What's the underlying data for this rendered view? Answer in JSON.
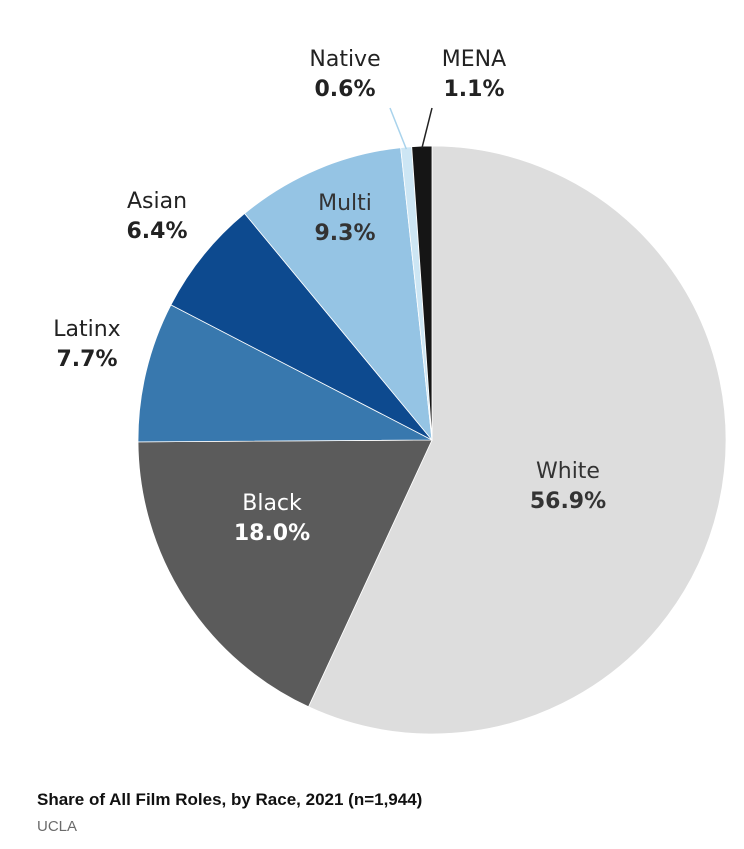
{
  "chart_data": {
    "type": "pie",
    "title": "Share of All Film Roles, by Race, 2021 (n=1,944)",
    "source": "UCLA",
    "slices": [
      {
        "label": "White",
        "value_text": "56.9%",
        "value": 56.9,
        "color": "#dddddd",
        "label_color": "#333333",
        "label_position": "inside"
      },
      {
        "label": "Black",
        "value_text": "18.0%",
        "value": 18.0,
        "color": "#5b5b5b",
        "label_color": "#ffffff",
        "label_position": "inside"
      },
      {
        "label": "Latinx",
        "value_text": "7.7%",
        "value": 7.7,
        "color": "#3878ae",
        "label_color": "#222222",
        "label_position": "outside"
      },
      {
        "label": "Asian",
        "value_text": "6.4%",
        "value": 6.4,
        "color": "#0d4a8f",
        "label_color": "#222222",
        "label_position": "outside"
      },
      {
        "label": "Multi",
        "value_text": "9.3%",
        "value": 9.3,
        "color": "#95c4e4",
        "label_color": "#333333",
        "label_position": "inside"
      },
      {
        "label": "Native",
        "value_text": "0.6%",
        "value": 0.6,
        "color": "#cde6f4",
        "label_color": "#222222",
        "label_position": "outside-leader"
      },
      {
        "label": "MENA",
        "value_text": "1.1%",
        "value": 1.1,
        "color": "#151515",
        "label_color": "#222222",
        "label_position": "outside-leader"
      }
    ],
    "start_angle_degrees": 0,
    "direction": "clockwise",
    "legend": "none"
  }
}
